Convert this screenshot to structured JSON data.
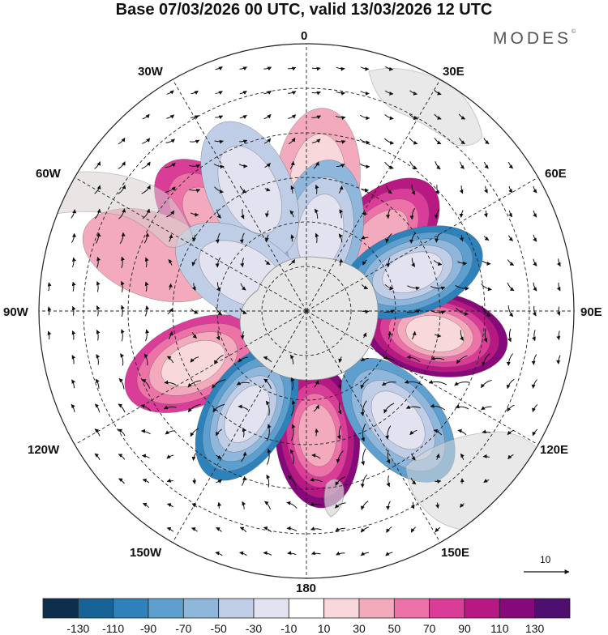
{
  "header": {
    "title": "Base 07/03/2026 00 UTC, valid 13/03/2026 12 UTC",
    "brand": "MODES",
    "brand_mark": "©"
  },
  "map": {
    "projection": "south-polar-stereographic",
    "longitude_labels": {
      "lon_0": "0",
      "lon_30e": "30E",
      "lon_60e": "60E",
      "lon_90e": "90E",
      "lon_120e": "120E",
      "lon_150e": "150E",
      "lon_180": "180",
      "lon_150w": "150W",
      "lon_120w": "120W",
      "lon_90w": "90W",
      "lon_60w": "60W",
      "lon_30w": "30W"
    },
    "anomaly_field": {
      "positive_centers": [
        {
          "lon": 5,
          "lat": -46,
          "value": 40
        },
        {
          "lon": -45,
          "lat": -46,
          "value": 70
        },
        {
          "lon": 45,
          "lat": -55,
          "value": 90
        },
        {
          "lon": 100,
          "lat": -46,
          "value": 120
        },
        {
          "lon": 175,
          "lat": -48,
          "value": 110
        },
        {
          "lon": -115,
          "lat": -48,
          "value": 80
        },
        {
          "lon": -70,
          "lat": -35,
          "value": 30
        }
      ],
      "negative_centers": [
        {
          "lon": 10,
          "lat": -63,
          "value": -55
        },
        {
          "lon": -25,
          "lat": -45,
          "value": -40
        },
        {
          "lon": -60,
          "lat": -65,
          "value": -50
        },
        {
          "lon": 70,
          "lat": -52,
          "value": -110
        },
        {
          "lon": -150,
          "lat": -50,
          "value": -110
        },
        {
          "lon": 140,
          "lat": -42,
          "value": -85
        }
      ]
    },
    "vector_scale_label": "10"
  },
  "colorbar": {
    "colors": [
      "#0d2f4d",
      "#176397",
      "#2d82bb",
      "#5d9fcf",
      "#8fb7dc",
      "#bfcde7",
      "#e2e2f0",
      "#ffffff",
      "#f8d8da",
      "#f3aabd",
      "#ec72a7",
      "#d93d98",
      "#b81882",
      "#87087a",
      "#4e0f71"
    ],
    "tick_labels": [
      "-130",
      "-110",
      "-90",
      "-70",
      "-50",
      "-30",
      "-10",
      "10",
      "30",
      "50",
      "70",
      "90",
      "110",
      "130"
    ]
  }
}
